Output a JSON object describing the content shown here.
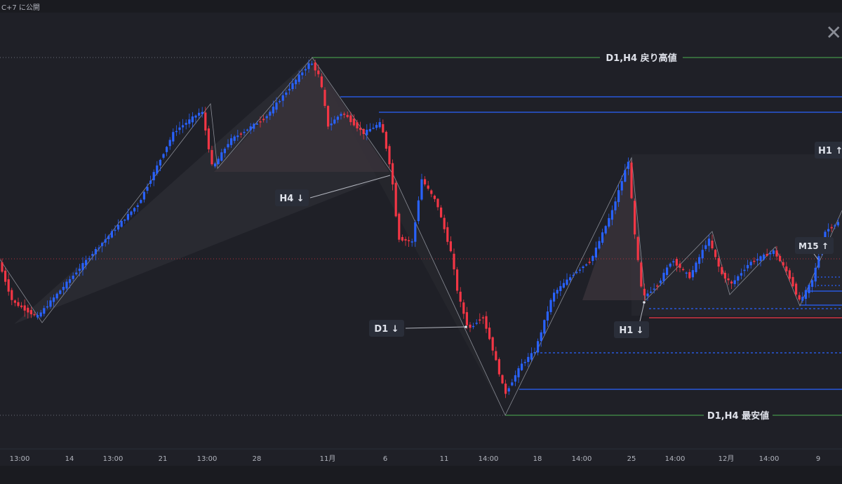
{
  "header": {
    "caption": "C+7 に公開"
  },
  "icons": {
    "close": "close-icon"
  },
  "colors": {
    "background": "#1f2027",
    "up_candle": "#2962ff",
    "down_candle": "#f23645",
    "green_line": "#4caf50",
    "blue_line": "#2962ff",
    "red_line": "#f23645",
    "label_bg": "#2a2e39"
  },
  "chart_data": {
    "type": "candlestick",
    "x_tick_labels": [
      "13:00",
      "14",
      "13:00",
      "21",
      "13:00",
      "28",
      "11月",
      "6",
      "11",
      "14:00",
      "18",
      "14:00",
      "25",
      "14:00",
      "12月",
      "14:00",
      "9"
    ],
    "annotations": {
      "resistance_label": "D1,H4 戻り高値",
      "support_label": "D1,H4 最安値",
      "swing_labels": [
        "H4 ↓",
        "D1 ↓",
        "H1 ↓",
        "H1 ↑",
        "M15 ↑"
      ]
    },
    "grid": true,
    "legend": "none"
  }
}
